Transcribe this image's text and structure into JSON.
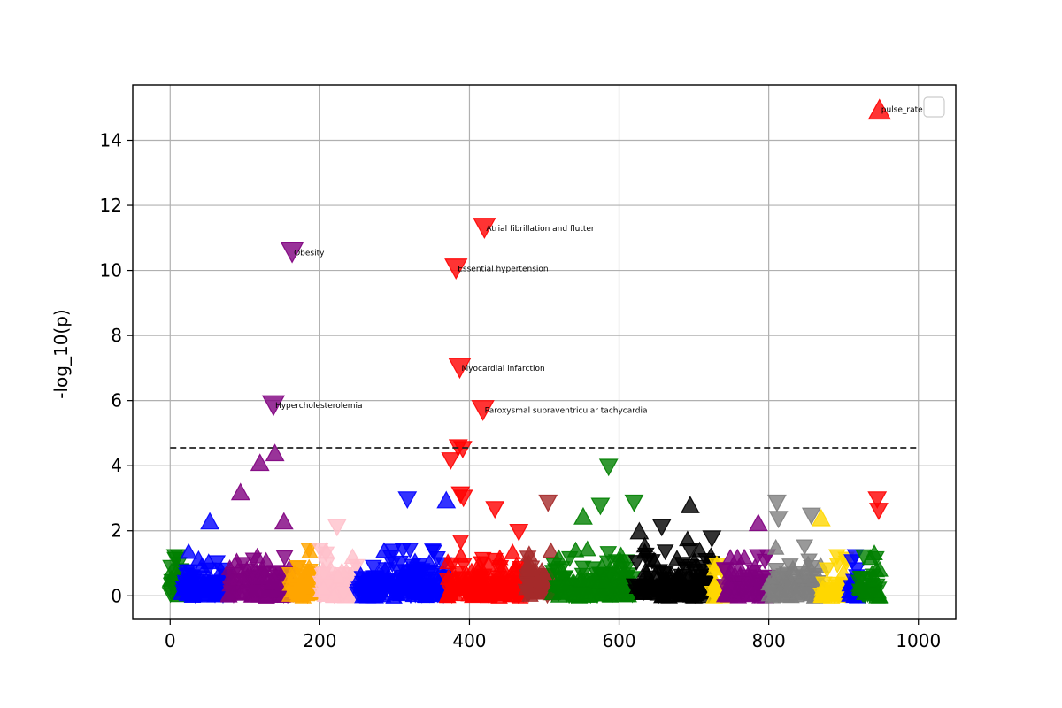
{
  "chart_data": {
    "type": "scatter",
    "title": "",
    "xlabel": "",
    "ylabel": "-log_10(p)",
    "xlim": [
      -50,
      1050
    ],
    "ylim": [
      -0.7,
      15.7
    ],
    "xticks": [
      0,
      200,
      400,
      600,
      800,
      1000
    ],
    "yticks": [
      0,
      2,
      4,
      6,
      8,
      10,
      12,
      14
    ],
    "grid": true,
    "legend": "top-right (empty)",
    "threshold": 4.55,
    "groups": [
      {
        "color": "#008000",
        "x_range": [
          0,
          15
        ],
        "seed": 11,
        "n": 30,
        "max": 1.2
      },
      {
        "color": "#0000ff",
        "x_range": [
          15,
          78
        ],
        "seed": 12,
        "n": 110,
        "max": 2.3
      },
      {
        "color": "#800080",
        "x_range": [
          78,
          160
        ],
        "seed": 13,
        "n": 120,
        "max": 2.0
      },
      {
        "color": "#ffa500",
        "x_range": [
          160,
          200
        ],
        "seed": 14,
        "n": 60,
        "max": 1.4
      },
      {
        "color": "#ffc0cb",
        "x_range": [
          200,
          250
        ],
        "seed": 15,
        "n": 70,
        "max": 1.4
      },
      {
        "color": "#0000ff",
        "x_range": [
          250,
          370
        ],
        "seed": 16,
        "n": 170,
        "max": 1.4
      },
      {
        "color": "#ff0000",
        "x_range": [
          370,
          475
        ],
        "seed": 17,
        "n": 160,
        "max": 1.9
      },
      {
        "color": "#a52a2a",
        "x_range": [
          475,
          510
        ],
        "seed": 18,
        "n": 55,
        "max": 1.4
      },
      {
        "color": "#008000",
        "x_range": [
          510,
          620
        ],
        "seed": 19,
        "n": 160,
        "max": 1.9
      },
      {
        "color": "#000000",
        "x_range": [
          620,
          725
        ],
        "seed": 20,
        "n": 150,
        "max": 1.8
      },
      {
        "color": "#ffd700",
        "x_range": [
          725,
          740
        ],
        "seed": 21,
        "n": 20,
        "max": 1.0
      },
      {
        "color": "#800080",
        "x_range": [
          740,
          800
        ],
        "seed": 22,
        "n": 80,
        "max": 1.2
      },
      {
        "color": "#808080",
        "x_range": [
          800,
          870
        ],
        "seed": 23,
        "n": 100,
        "max": 1.5
      },
      {
        "color": "#ffd700",
        "x_range": [
          870,
          905
        ],
        "seed": 24,
        "n": 45,
        "max": 1.2
      },
      {
        "color": "#0000ff",
        "x_range": [
          905,
          920
        ],
        "seed": 25,
        "n": 20,
        "max": 1.2
      },
      {
        "color": "#008000",
        "x_range": [
          920,
          950
        ],
        "seed": 26,
        "n": 40,
        "max": 1.4
      }
    ],
    "highlights": [
      {
        "x": 948,
        "y": 14.95,
        "color": "#ff0000",
        "dir": "up",
        "label": "pulse_rate"
      },
      {
        "x": 420,
        "y": 11.3,
        "color": "#ff0000",
        "dir": "down",
        "label": "Atrial fibrillation and flutter"
      },
      {
        "x": 163,
        "y": 10.55,
        "color": "#800080",
        "dir": "down",
        "label": "Obesity"
      },
      {
        "x": 382,
        "y": 10.05,
        "color": "#ff0000",
        "dir": "down",
        "label": "Essential hypertension"
      },
      {
        "x": 387,
        "y": 7.0,
        "color": "#ff0000",
        "dir": "down",
        "label": "Myocardial infarction"
      },
      {
        "x": 138,
        "y": 5.85,
        "color": "#800080",
        "dir": "down",
        "label": "Hypercholesterolemia"
      },
      {
        "x": 418,
        "y": 5.7,
        "color": "#ff0000",
        "dir": "down",
        "label": "Paroxysmal supraventricular tachycardia"
      }
    ],
    "notable": [
      {
        "x": 385,
        "y": 4.55,
        "color": "#ff0000",
        "dir": "down"
      },
      {
        "x": 391,
        "y": 4.5,
        "color": "#ff0000",
        "dir": "down"
      },
      {
        "x": 375,
        "y": 4.15,
        "color": "#ff0000",
        "dir": "down"
      },
      {
        "x": 140,
        "y": 4.4,
        "color": "#800080",
        "dir": "up"
      },
      {
        "x": 120,
        "y": 4.1,
        "color": "#800080",
        "dir": "up"
      },
      {
        "x": 94,
        "y": 3.2,
        "color": "#800080",
        "dir": "up"
      },
      {
        "x": 586,
        "y": 3.95,
        "color": "#008000",
        "dir": "down"
      },
      {
        "x": 317,
        "y": 2.95,
        "color": "#0000ff",
        "dir": "down"
      },
      {
        "x": 369,
        "y": 2.95,
        "color": "#0000ff",
        "dir": "up"
      },
      {
        "x": 388,
        "y": 3.1,
        "color": "#ff0000",
        "dir": "down"
      },
      {
        "x": 392,
        "y": 3.0,
        "color": "#ff0000",
        "dir": "down"
      },
      {
        "x": 505,
        "y": 2.85,
        "color": "#a52a2a",
        "dir": "down"
      },
      {
        "x": 434,
        "y": 2.65,
        "color": "#ff0000",
        "dir": "down"
      },
      {
        "x": 620,
        "y": 2.85,
        "color": "#008000",
        "dir": "down"
      },
      {
        "x": 575,
        "y": 2.75,
        "color": "#008000",
        "dir": "down"
      },
      {
        "x": 695,
        "y": 2.8,
        "color": "#000000",
        "dir": "up"
      },
      {
        "x": 811,
        "y": 2.85,
        "color": "#808080",
        "dir": "down"
      },
      {
        "x": 813,
        "y": 2.35,
        "color": "#808080",
        "dir": "down"
      },
      {
        "x": 857,
        "y": 2.45,
        "color": "#808080",
        "dir": "down"
      },
      {
        "x": 870,
        "y": 2.4,
        "color": "#ffd700",
        "dir": "up"
      },
      {
        "x": 945,
        "y": 2.95,
        "color": "#ff0000",
        "dir": "down"
      },
      {
        "x": 947,
        "y": 2.6,
        "color": "#ff0000",
        "dir": "down"
      },
      {
        "x": 223,
        "y": 2.1,
        "color": "#ffc0cb",
        "dir": "down"
      },
      {
        "x": 53,
        "y": 2.3,
        "color": "#0000ff",
        "dir": "up"
      },
      {
        "x": 152,
        "y": 2.3,
        "color": "#800080",
        "dir": "up"
      },
      {
        "x": 786,
        "y": 2.25,
        "color": "#800080",
        "dir": "up"
      },
      {
        "x": 552,
        "y": 2.45,
        "color": "#008000",
        "dir": "up"
      },
      {
        "x": 466,
        "y": 1.95,
        "color": "#ff0000",
        "dir": "down"
      },
      {
        "x": 657,
        "y": 2.1,
        "color": "#000000",
        "dir": "down"
      },
      {
        "x": 627,
        "y": 2.0,
        "color": "#000000",
        "dir": "up"
      },
      {
        "x": 724,
        "y": 1.75,
        "color": "#000000",
        "dir": "down"
      }
    ]
  }
}
